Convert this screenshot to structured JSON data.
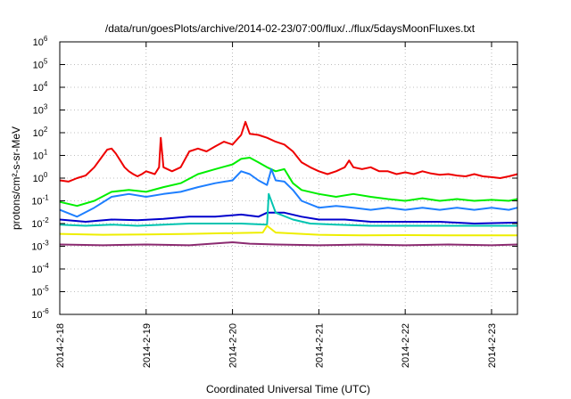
{
  "chart_data": {
    "type": "line",
    "title": "/data/run/goesPlots/archive/2014-02-23/07:00/flux/../flux/5daysMoonFluxes.txt",
    "xlabel": "Coordinated Universal Time (UTC)",
    "ylabel": "protons/cm²-s-sr-MeV",
    "x_unit": "days",
    "xlim": [
      0,
      5.3
    ],
    "ylim_log10": [
      -6,
      6
    ],
    "yscale": "log",
    "grid": true,
    "x_ticks": [
      {
        "x": 0,
        "label": "2014-2-18"
      },
      {
        "x": 1,
        "label": "2014-2-19"
      },
      {
        "x": 2,
        "label": "2014-2-20"
      },
      {
        "x": 3,
        "label": "2014-2-21"
      },
      {
        "x": 4,
        "label": "2014-2-22"
      },
      {
        "x": 5,
        "label": "2014-2-23"
      }
    ],
    "y_ticks": [
      {
        "exp": -6,
        "label": "10",
        "sup": "-6"
      },
      {
        "exp": -5,
        "label": "10",
        "sup": "-5"
      },
      {
        "exp": -4,
        "label": "10",
        "sup": "-4"
      },
      {
        "exp": -3,
        "label": "10",
        "sup": "-3"
      },
      {
        "exp": -2,
        "label": "10",
        "sup": "-2"
      },
      {
        "exp": -1,
        "label": "10",
        "sup": "-1"
      },
      {
        "exp": 0,
        "label": "10",
        "sup": "0"
      },
      {
        "exp": 1,
        "label": "10",
        "sup": "1"
      },
      {
        "exp": 2,
        "label": "10",
        "sup": "2"
      },
      {
        "exp": 3,
        "label": "10",
        "sup": "3"
      },
      {
        "exp": 4,
        "label": "10",
        "sup": "4"
      },
      {
        "exp": 5,
        "label": "10",
        "sup": "5"
      },
      {
        "exp": 6,
        "label": "10",
        "sup": "6"
      }
    ],
    "series": [
      {
        "color": "#ee0000",
        "points": [
          [
            0,
            0.8
          ],
          [
            0.1,
            0.7
          ],
          [
            0.2,
            1.0
          ],
          [
            0.3,
            1.3
          ],
          [
            0.4,
            3
          ],
          [
            0.5,
            10
          ],
          [
            0.55,
            18
          ],
          [
            0.6,
            20
          ],
          [
            0.65,
            12
          ],
          [
            0.7,
            6
          ],
          [
            0.75,
            3
          ],
          [
            0.8,
            2
          ],
          [
            0.85,
            1.5
          ],
          [
            0.9,
            1.2
          ],
          [
            0.95,
            1.5
          ],
          [
            1.0,
            2
          ],
          [
            1.1,
            1.5
          ],
          [
            1.15,
            3
          ],
          [
            1.17,
            60
          ],
          [
            1.2,
            3
          ],
          [
            1.3,
            2
          ],
          [
            1.4,
            3
          ],
          [
            1.5,
            15
          ],
          [
            1.6,
            20
          ],
          [
            1.7,
            15
          ],
          [
            1.8,
            25
          ],
          [
            1.9,
            40
          ],
          [
            2.0,
            30
          ],
          [
            2.1,
            80
          ],
          [
            2.15,
            300
          ],
          [
            2.2,
            90
          ],
          [
            2.3,
            80
          ],
          [
            2.4,
            60
          ],
          [
            2.5,
            40
          ],
          [
            2.6,
            30
          ],
          [
            2.7,
            15
          ],
          [
            2.8,
            5
          ],
          [
            2.9,
            3
          ],
          [
            3.0,
            2
          ],
          [
            3.1,
            1.5
          ],
          [
            3.2,
            2
          ],
          [
            3.3,
            3
          ],
          [
            3.35,
            6
          ],
          [
            3.4,
            3
          ],
          [
            3.5,
            2.5
          ],
          [
            3.6,
            3
          ],
          [
            3.7,
            2
          ],
          [
            3.8,
            2
          ],
          [
            3.9,
            1.5
          ],
          [
            4.0,
            1.8
          ],
          [
            4.1,
            1.5
          ],
          [
            4.2,
            2
          ],
          [
            4.3,
            1.6
          ],
          [
            4.4,
            1.4
          ],
          [
            4.5,
            1.5
          ],
          [
            4.6,
            1.3
          ],
          [
            4.7,
            1.2
          ],
          [
            4.8,
            1.5
          ],
          [
            4.9,
            1.2
          ],
          [
            5.0,
            1.1
          ],
          [
            5.1,
            1.0
          ],
          [
            5.2,
            1.2
          ],
          [
            5.3,
            1.5
          ]
        ]
      },
      {
        "color": "#00ee00",
        "points": [
          [
            0,
            0.09
          ],
          [
            0.2,
            0.06
          ],
          [
            0.4,
            0.1
          ],
          [
            0.6,
            0.25
          ],
          [
            0.8,
            0.3
          ],
          [
            1.0,
            0.25
          ],
          [
            1.2,
            0.4
          ],
          [
            1.4,
            0.6
          ],
          [
            1.6,
            1.5
          ],
          [
            1.8,
            2.5
          ],
          [
            2.0,
            4
          ],
          [
            2.1,
            7
          ],
          [
            2.2,
            8
          ],
          [
            2.3,
            5
          ],
          [
            2.4,
            3
          ],
          [
            2.5,
            2
          ],
          [
            2.6,
            2.5
          ],
          [
            2.7,
            0.6
          ],
          [
            2.8,
            0.3
          ],
          [
            3.0,
            0.2
          ],
          [
            3.2,
            0.15
          ],
          [
            3.4,
            0.2
          ],
          [
            3.6,
            0.15
          ],
          [
            3.8,
            0.12
          ],
          [
            4.0,
            0.1
          ],
          [
            4.2,
            0.13
          ],
          [
            4.4,
            0.1
          ],
          [
            4.6,
            0.12
          ],
          [
            4.8,
            0.1
          ],
          [
            5.0,
            0.11
          ],
          [
            5.2,
            0.1
          ],
          [
            5.3,
            0.12
          ]
        ]
      },
      {
        "color": "#1e7fff",
        "points": [
          [
            0,
            0.04
          ],
          [
            0.2,
            0.02
          ],
          [
            0.4,
            0.05
          ],
          [
            0.6,
            0.15
          ],
          [
            0.8,
            0.2
          ],
          [
            1.0,
            0.15
          ],
          [
            1.2,
            0.2
          ],
          [
            1.4,
            0.25
          ],
          [
            1.6,
            0.4
          ],
          [
            1.8,
            0.6
          ],
          [
            2.0,
            0.8
          ],
          [
            2.1,
            2
          ],
          [
            2.2,
            1.5
          ],
          [
            2.3,
            0.8
          ],
          [
            2.4,
            0.5
          ],
          [
            2.45,
            2.5
          ],
          [
            2.5,
            0.8
          ],
          [
            2.6,
            0.7
          ],
          [
            2.7,
            0.3
          ],
          [
            2.8,
            0.1
          ],
          [
            3.0,
            0.05
          ],
          [
            3.2,
            0.06
          ],
          [
            3.4,
            0.05
          ],
          [
            3.6,
            0.04
          ],
          [
            3.8,
            0.05
          ],
          [
            4.0,
            0.04
          ],
          [
            4.2,
            0.05
          ],
          [
            4.4,
            0.04
          ],
          [
            4.6,
            0.05
          ],
          [
            4.8,
            0.04
          ],
          [
            5.0,
            0.05
          ],
          [
            5.2,
            0.04
          ],
          [
            5.3,
            0.05
          ]
        ]
      },
      {
        "color": "#0000cc",
        "points": [
          [
            0,
            0.015
          ],
          [
            0.3,
            0.012
          ],
          [
            0.6,
            0.015
          ],
          [
            0.9,
            0.014
          ],
          [
            1.2,
            0.016
          ],
          [
            1.5,
            0.02
          ],
          [
            1.8,
            0.02
          ],
          [
            2.1,
            0.025
          ],
          [
            2.3,
            0.02
          ],
          [
            2.4,
            0.03
          ],
          [
            2.6,
            0.03
          ],
          [
            2.8,
            0.02
          ],
          [
            3.0,
            0.015
          ],
          [
            3.3,
            0.015
          ],
          [
            3.6,
            0.012
          ],
          [
            4.0,
            0.012
          ],
          [
            4.4,
            0.012
          ],
          [
            4.8,
            0.01
          ],
          [
            5.3,
            0.011
          ]
        ]
      },
      {
        "color": "#00c4b0",
        "points": [
          [
            0,
            0.009
          ],
          [
            0.3,
            0.008
          ],
          [
            0.6,
            0.009
          ],
          [
            0.9,
            0.008
          ],
          [
            1.2,
            0.009
          ],
          [
            1.5,
            0.01
          ],
          [
            1.8,
            0.01
          ],
          [
            2.1,
            0.01
          ],
          [
            2.4,
            0.009
          ],
          [
            2.42,
            0.2
          ],
          [
            2.5,
            0.03
          ],
          [
            2.7,
            0.015
          ],
          [
            2.9,
            0.01
          ],
          [
            3.2,
            0.009
          ],
          [
            3.6,
            0.008
          ],
          [
            4.0,
            0.008
          ],
          [
            4.4,
            0.008
          ],
          [
            4.8,
            0.008
          ],
          [
            5.3,
            0.008
          ]
        ]
      },
      {
        "color": "#eeee00",
        "points": [
          [
            0,
            0.0035
          ],
          [
            0.5,
            0.0032
          ],
          [
            1.0,
            0.0033
          ],
          [
            1.5,
            0.0035
          ],
          [
            2.0,
            0.0038
          ],
          [
            2.35,
            0.004
          ],
          [
            2.4,
            0.008
          ],
          [
            2.5,
            0.004
          ],
          [
            3.0,
            0.0032
          ],
          [
            3.5,
            0.003
          ],
          [
            4.0,
            0.0031
          ],
          [
            4.5,
            0.003
          ],
          [
            5.0,
            0.003
          ],
          [
            5.3,
            0.003
          ]
        ]
      },
      {
        "color": "#8b2a70",
        "points": [
          [
            0,
            0.0012
          ],
          [
            0.5,
            0.0011
          ],
          [
            1.0,
            0.0012
          ],
          [
            1.5,
            0.0011
          ],
          [
            2.0,
            0.0015
          ],
          [
            2.2,
            0.0013
          ],
          [
            2.5,
            0.0012
          ],
          [
            3.0,
            0.0011
          ],
          [
            3.5,
            0.0012
          ],
          [
            4.0,
            0.0011
          ],
          [
            4.5,
            0.0012
          ],
          [
            5.0,
            0.0011
          ],
          [
            5.3,
            0.0012
          ]
        ]
      }
    ]
  }
}
